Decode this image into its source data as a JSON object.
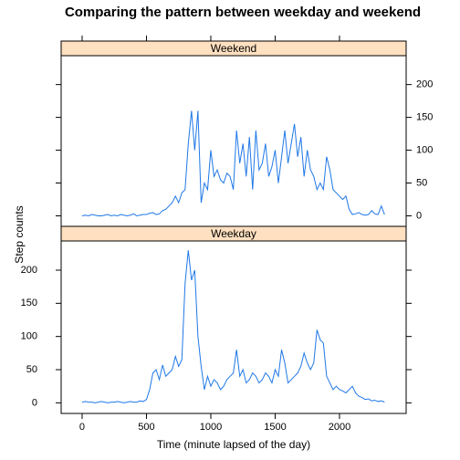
{
  "chart_data": {
    "type": "line",
    "title": "Comparing the pattern between weekday and weekend",
    "xlabel": "Time (minute lapsed of the day)",
    "ylabel": "Step counts",
    "x": [
      0,
      25,
      50,
      75,
      100,
      125,
      150,
      175,
      200,
      225,
      250,
      275,
      300,
      325,
      350,
      375,
      400,
      425,
      450,
      475,
      500,
      525,
      550,
      575,
      600,
      625,
      650,
      675,
      700,
      725,
      750,
      775,
      800,
      825,
      850,
      875,
      900,
      925,
      950,
      975,
      1000,
      1025,
      1050,
      1075,
      1100,
      1125,
      1150,
      1175,
      1200,
      1225,
      1250,
      1275,
      1300,
      1325,
      1350,
      1375,
      1400,
      1425,
      1450,
      1475,
      1500,
      1525,
      1550,
      1575,
      1600,
      1625,
      1650,
      1675,
      1700,
      1725,
      1750,
      1775,
      1800,
      1825,
      1850,
      1875,
      1900,
      1925,
      1950,
      1975,
      2000,
      2025,
      2050,
      2075,
      2100,
      2125,
      2150,
      2175,
      2200,
      2225,
      2250,
      2275,
      2300,
      2325,
      2350
    ],
    "series": [
      {
        "name": "Weekend",
        "color": "#1f78e6",
        "values": [
          0,
          1,
          0,
          2,
          1,
          0,
          0,
          1,
          2,
          0,
          1,
          0,
          2,
          1,
          0,
          1,
          3,
          0,
          1,
          2,
          2,
          4,
          5,
          2,
          3,
          8,
          10,
          15,
          20,
          30,
          20,
          35,
          40,
          110,
          160,
          100,
          160,
          20,
          50,
          40,
          100,
          60,
          70,
          55,
          50,
          65,
          60,
          40,
          130,
          80,
          110,
          60,
          120,
          40,
          130,
          70,
          80,
          110,
          60,
          75,
          100,
          50,
          90,
          130,
          80,
          110,
          140,
          90,
          120,
          60,
          100,
          70,
          60,
          40,
          50,
          40,
          90,
          70,
          40,
          35,
          30,
          25,
          30,
          10,
          2,
          3,
          5,
          2,
          1,
          2,
          8,
          3,
          2,
          15,
          2
        ]
      },
      {
        "name": "Weekday",
        "color": "#1f78e6",
        "values": [
          1,
          2,
          1,
          1,
          0,
          1,
          2,
          1,
          0,
          1,
          1,
          2,
          1,
          0,
          1,
          2,
          1,
          1,
          3,
          2,
          5,
          20,
          45,
          50,
          35,
          57,
          40,
          45,
          50,
          70,
          55,
          65,
          180,
          230,
          185,
          200,
          100,
          55,
          20,
          40,
          25,
          35,
          30,
          20,
          25,
          35,
          40,
          45,
          80,
          40,
          50,
          30,
          35,
          45,
          40,
          30,
          35,
          45,
          40,
          30,
          50,
          40,
          80,
          60,
          30,
          35,
          40,
          45,
          55,
          75,
          60,
          50,
          60,
          110,
          95,
          90,
          40,
          30,
          20,
          25,
          20,
          18,
          15,
          20,
          25,
          15,
          10,
          8,
          5,
          6,
          3,
          4,
          2,
          3,
          1
        ]
      }
    ],
    "xlim": [
      -163,
      2518
    ],
    "ylim": [
      -16,
      244
    ],
    "xticks": [
      0,
      500,
      1000,
      1500,
      2000
    ],
    "yticks": [
      0,
      50,
      100,
      150,
      200
    ],
    "strip_color": "#ffe0c0"
  }
}
